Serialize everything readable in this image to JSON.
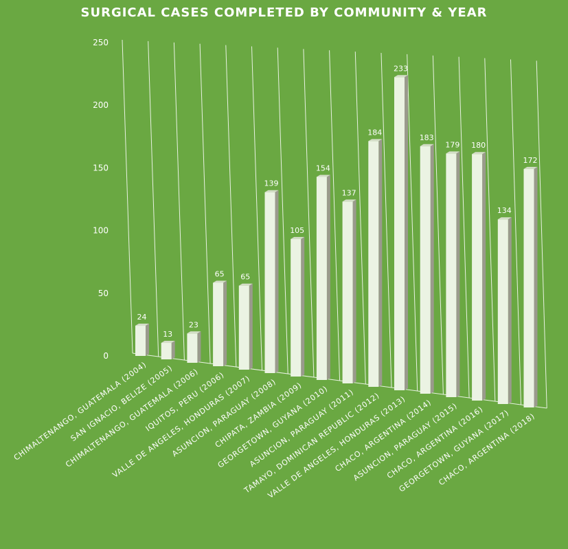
{
  "chart_data": {
    "type": "bar",
    "title": "SURGICAL CASES COMPLETED BY COMMUNITY & YEAR",
    "xlabel": "",
    "ylabel": "",
    "ylim": [
      0,
      250
    ],
    "yticks": [
      0,
      50,
      100,
      150,
      200,
      250
    ],
    "grid": true,
    "legend": "none",
    "style": "3d-column",
    "categories": [
      "CHIMALTENANGO, GUATEMALA (2004)",
      "SAN IGNACIO, BELIZE (2005)",
      "CHIMALTENANGO, GUATEMALA (2006)",
      "IQUITOS, PERU (2006)",
      "VALLE DE ANGELES, HONDURAS (2007)",
      "ASUNCION, PARAGUAY (2008)",
      "CHIPATA, ZAMBIA (2009)",
      "GEORGETOWN, GUYANA (2010)",
      "ASUNCION, PARAGUAY (2011)",
      "TAMAYO, DOMINICAN REPUBLIC (2012)",
      "VALLE DE ANGELES, HONDURAS (2013)",
      "CHACO, ARGENTINA (2014)",
      "ASUNCION, PARAGUAY (2015)",
      "CHACO, ARGENTINA (2016)",
      "GEORGETOWN, GUYANA (2017)",
      "CHACO, ARGENTINA (2018)"
    ],
    "values": [
      24,
      13,
      23,
      65,
      65,
      139,
      105,
      154,
      137,
      184,
      233,
      183,
      179,
      180,
      134,
      172
    ]
  },
  "colors": {
    "background": "#6aa842",
    "bar_front": "#ebf3e3",
    "bar_side": "#9a9a8c",
    "bar_top": "#d4ddc8",
    "text": "#ffffff",
    "gridline": "#ffffff"
  }
}
